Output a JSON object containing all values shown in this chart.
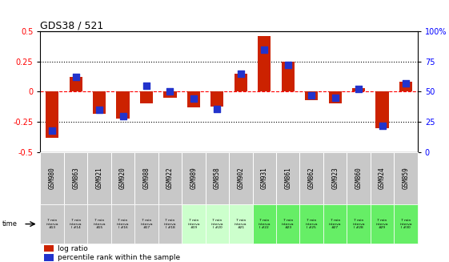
{
  "title": "GDS38 / 521",
  "samples": [
    "GSM980",
    "GSM863",
    "GSM921",
    "GSM920",
    "GSM988",
    "GSM922",
    "GSM989",
    "GSM858",
    "GSM902",
    "GSM931",
    "GSM861",
    "GSM862",
    "GSM923",
    "GSM860",
    "GSM924",
    "GSM859"
  ],
  "time_labels": [
    "7 min\ninterva\n#13",
    "7 min\ninterva\nl #14",
    "7 min\ninterva\n#15",
    "7 min\ninterva\nl #16",
    "7 min\ninterva\n#17",
    "7 min\ninterva\nl #18",
    "7 min\ninterva\n#19",
    "7 min\ninterva\nl #20",
    "7 min\ninterva\n#21",
    "7 min\ninterva\nl #22",
    "7 min\ninterva\n#23",
    "7 min\ninterva\nl #25",
    "7 min\ninterva\n#27",
    "7 min\ninterva\nl #28",
    "7 min\ninterva\n#29",
    "7 min\ninterva\nl #30"
  ],
  "log_ratio": [
    -0.38,
    0.12,
    -0.18,
    -0.22,
    -0.1,
    -0.05,
    -0.13,
    -0.12,
    0.15,
    0.46,
    0.25,
    -0.07,
    -0.1,
    0.03,
    -0.3,
    0.08
  ],
  "percentile": [
    0.18,
    0.62,
    0.35,
    0.3,
    0.55,
    0.5,
    0.44,
    0.36,
    0.65,
    0.85,
    0.72,
    0.47,
    0.45,
    0.52,
    0.22,
    0.57
  ],
  "bar_color": "#cc2200",
  "dot_color": "#2233cc",
  "ylim": [
    -0.5,
    0.5
  ],
  "y2lim": [
    0,
    100
  ],
  "yticks": [
    -0.5,
    -0.25,
    0.0,
    0.25,
    0.5
  ],
  "y2ticks": [
    0,
    25,
    50,
    75,
    100
  ],
  "hlines_dotted": [
    -0.25,
    0.25
  ],
  "hline_dashed": 0.0,
  "cell_bg_gray": "#c8c8c8",
  "time_row_bg": [
    "#c8c8c8",
    "#c8c8c8",
    "#c8c8c8",
    "#c8c8c8",
    "#c8c8c8",
    "#c8c8c8",
    "#ccffcc",
    "#ccffcc",
    "#ccffcc",
    "#66ee66",
    "#66ee66",
    "#66ee66",
    "#66ee66",
    "#66ee66",
    "#66ee66",
    "#66ee66"
  ],
  "bar_width": 0.55,
  "dot_marker_size": 30
}
